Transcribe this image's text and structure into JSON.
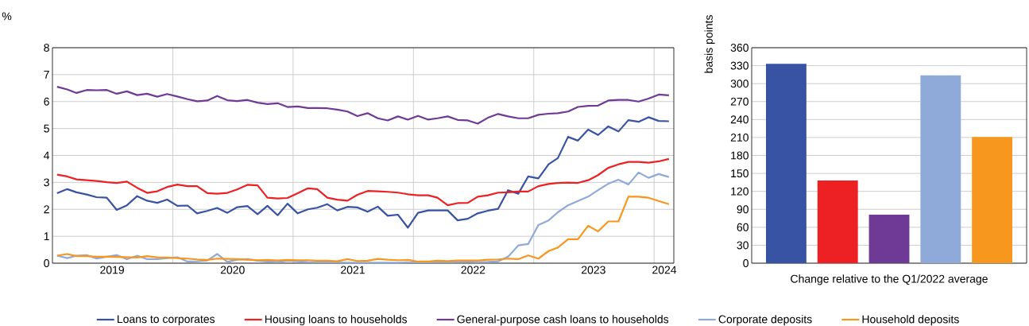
{
  "chart_data": [
    {
      "type": "line",
      "ylabel": "%",
      "x": [
        "2019-01-15",
        "2019-02-15",
        "2019-03-15",
        "2019-04-15",
        "2019-05-15",
        "2019-06-15",
        "2019-07-15",
        "2019-08-15",
        "2019-09-15",
        "2019-10-15",
        "2019-11-15",
        "2019-12-15",
        "2020-01-15",
        "2020-02-15",
        "2020-03-15",
        "2020-04-15",
        "2020-05-15",
        "2020-06-15",
        "2020-07-15",
        "2020-08-15",
        "2020-09-15",
        "2020-10-15",
        "2020-11-15",
        "2020-12-15",
        "2021-01-15",
        "2021-02-15",
        "2021-03-15",
        "2021-04-15",
        "2021-05-15",
        "2021-06-15",
        "2021-07-15",
        "2021-08-15",
        "2021-09-15",
        "2021-10-15",
        "2021-11-15",
        "2021-12-15",
        "2022-01-15",
        "2022-02-15",
        "2022-03-15",
        "2022-04-15",
        "2022-05-15",
        "2022-06-15",
        "2022-07-15",
        "2022-08-15",
        "2022-09-15",
        "2022-10-15",
        "2022-11-15",
        "2022-12-15",
        "2023-01-15",
        "2023-02-15",
        "2023-03-15",
        "2023-04-15",
        "2023-05-15",
        "2023-06-15",
        "2023-07-15",
        "2023-08-15",
        "2023-09-15",
        "2023-10-15",
        "2023-11-15",
        "2023-12-15",
        "2024-01-15",
        "2024-02-15"
      ],
      "xlim": [
        "2019-01-01",
        "2024-03-01"
      ],
      "xticks": [
        {
          "value": "2020-01-01",
          "label": null
        },
        {
          "value": "2021-01-01",
          "label": null
        },
        {
          "value": "2022-01-01",
          "label": null
        },
        {
          "value": "2023-01-01",
          "label": null
        },
        {
          "value": "2024-01-01",
          "label": null
        },
        {
          "value": "2019-07-01",
          "label": "2019"
        },
        {
          "value": "2020-07-01",
          "label": "2020"
        },
        {
          "value": "2021-07-01",
          "label": "2021"
        },
        {
          "value": "2022-07-01",
          "label": "2022"
        },
        {
          "value": "2023-07-01",
          "label": "2023"
        },
        {
          "value": "2024-02-01",
          "label": "2024"
        }
      ],
      "ylim": [
        0,
        8
      ],
      "yticks": [
        0,
        1,
        2,
        3,
        4,
        5,
        6,
        7,
        8
      ],
      "grid": true,
      "legend": "bottom",
      "series": [
        {
          "name": "Loans to corporates",
          "color": "#3953a4",
          "values": [
            2.6,
            2.75,
            2.63,
            2.55,
            2.45,
            2.43,
            1.98,
            2.15,
            2.49,
            2.32,
            2.24,
            2.36,
            2.13,
            2.14,
            1.85,
            1.94,
            2.05,
            1.87,
            2.08,
            2.12,
            1.82,
            2.13,
            1.78,
            2.21,
            1.85,
            2.0,
            2.06,
            2.19,
            1.96,
            2.09,
            2.07,
            1.91,
            2.1,
            1.76,
            1.8,
            1.32,
            1.87,
            1.96,
            1.96,
            1.96,
            1.59,
            1.65,
            1.85,
            1.95,
            2.02,
            2.71,
            2.58,
            3.22,
            3.15,
            3.67,
            3.9,
            4.69,
            4.55,
            4.96,
            4.76,
            5.08,
            4.89,
            5.31,
            5.25,
            5.42,
            5.28,
            5.27
          ]
        },
        {
          "name": "Housing loans to households",
          "color": "#ed2024",
          "values": [
            3.29,
            3.22,
            3.11,
            3.08,
            3.05,
            3.01,
            2.98,
            3.03,
            2.8,
            2.61,
            2.67,
            2.83,
            2.92,
            2.86,
            2.86,
            2.6,
            2.58,
            2.61,
            2.74,
            2.91,
            2.89,
            2.43,
            2.4,
            2.42,
            2.6,
            2.78,
            2.75,
            2.43,
            2.36,
            2.32,
            2.54,
            2.68,
            2.67,
            2.65,
            2.62,
            2.56,
            2.52,
            2.52,
            2.43,
            2.15,
            2.23,
            2.24,
            2.47,
            2.52,
            2.62,
            2.63,
            2.66,
            2.66,
            2.86,
            2.94,
            2.98,
            2.99,
            2.98,
            3.08,
            3.27,
            3.54,
            3.67,
            3.76,
            3.76,
            3.73,
            3.78,
            3.87
          ]
        },
        {
          "name": "General-purpose cash loans to households",
          "color": "#6f3a96",
          "values": [
            6.55,
            6.45,
            6.32,
            6.43,
            6.42,
            6.43,
            6.29,
            6.38,
            6.24,
            6.29,
            6.18,
            6.28,
            6.19,
            6.09,
            6.01,
            6.04,
            6.21,
            6.05,
            6.02,
            6.06,
            5.96,
            5.91,
            5.94,
            5.8,
            5.82,
            5.76,
            5.76,
            5.75,
            5.7,
            5.63,
            5.46,
            5.57,
            5.38,
            5.3,
            5.45,
            5.33,
            5.47,
            5.33,
            5.38,
            5.45,
            5.32,
            5.3,
            5.18,
            5.4,
            5.54,
            5.45,
            5.38,
            5.38,
            5.51,
            5.55,
            5.57,
            5.63,
            5.8,
            5.84,
            5.85,
            6.04,
            6.06,
            6.06,
            6.0,
            6.11,
            6.26,
            6.23
          ]
        },
        {
          "name": "Corporate deposits",
          "color": "#8faad8",
          "values": [
            0.28,
            0.19,
            0.28,
            0.3,
            0.17,
            0.24,
            0.3,
            0.15,
            0.28,
            0.15,
            0.15,
            0.19,
            0.22,
            0.06,
            0.07,
            0.1,
            0.34,
            0.05,
            0.13,
            0.15,
            0.09,
            0.06,
            0.04,
            0.09,
            0.07,
            0.04,
            0.03,
            0.03,
            0.03,
            0.02,
            0.02,
            0.02,
            0.02,
            0.02,
            0.02,
            0.03,
            0.03,
            0.03,
            0.04,
            0.04,
            0.05,
            0.06,
            0.04,
            0.05,
            0.07,
            0.24,
            0.66,
            0.71,
            1.42,
            1.59,
            1.89,
            2.15,
            2.31,
            2.47,
            2.71,
            2.95,
            3.1,
            2.92,
            3.37,
            3.17,
            3.31,
            3.2
          ]
        },
        {
          "name": "Household deposits",
          "color": "#f7971d",
          "values": [
            0.28,
            0.34,
            0.26,
            0.26,
            0.24,
            0.24,
            0.23,
            0.22,
            0.21,
            0.26,
            0.22,
            0.21,
            0.19,
            0.17,
            0.14,
            0.12,
            0.17,
            0.16,
            0.15,
            0.13,
            0.11,
            0.12,
            0.1,
            0.12,
            0.11,
            0.11,
            0.09,
            0.09,
            0.07,
            0.15,
            0.08,
            0.09,
            0.16,
            0.13,
            0.11,
            0.12,
            0.06,
            0.06,
            0.09,
            0.08,
            0.1,
            0.1,
            0.1,
            0.13,
            0.14,
            0.17,
            0.15,
            0.29,
            0.17,
            0.45,
            0.58,
            0.89,
            0.89,
            1.39,
            1.18,
            1.55,
            1.55,
            2.47,
            2.47,
            2.43,
            2.31,
            2.19
          ]
        }
      ]
    },
    {
      "type": "bar",
      "xlabel": "Change relative to the Q1/2022 average",
      "ylabel": "basis points",
      "categories": [
        null,
        null,
        null,
        null,
        null
      ],
      "values": [
        333,
        138,
        81,
        314,
        211
      ],
      "colors": [
        "#3953a4",
        "#ed2024",
        "#6f3a96",
        "#8faad8",
        "#f7971d"
      ],
      "ylim": [
        0,
        360
      ],
      "yticks": [
        0,
        30,
        60,
        90,
        120,
        150,
        180,
        210,
        240,
        270,
        300,
        330,
        360
      ],
      "grid": "y"
    }
  ]
}
